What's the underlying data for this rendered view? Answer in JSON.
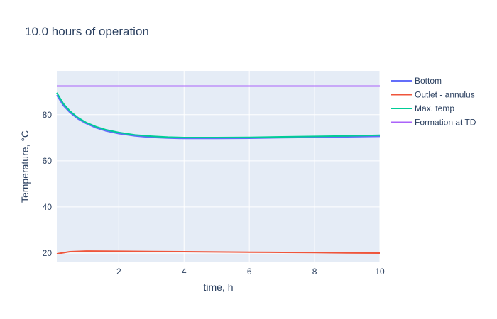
{
  "chart_data": {
    "type": "line",
    "title": "10.0 hours of operation",
    "xlabel": "time, h",
    "ylabel": "Temperature, °C",
    "xlim": [
      0.1,
      10
    ],
    "ylim": [
      16,
      99
    ],
    "xticks": [
      2,
      4,
      6,
      8,
      10
    ],
    "yticks": [
      20,
      40,
      60,
      80
    ],
    "grid": true,
    "legend_position": "right",
    "series": [
      {
        "name": "Bottom",
        "color": "#636efa",
        "x": [
          0.1,
          0.3,
          0.5,
          0.75,
          1.0,
          1.3,
          1.6,
          2.0,
          2.5,
          3.0,
          3.5,
          4.0,
          5.0,
          6.0,
          7.0,
          8.0,
          9.0,
          10.0
        ],
        "y": [
          88.5,
          84.0,
          81.0,
          78.2,
          76.2,
          74.3,
          73.0,
          71.8,
          70.8,
          70.2,
          69.9,
          69.7,
          69.7,
          69.8,
          70.0,
          70.2,
          70.4,
          70.6
        ]
      },
      {
        "name": "Outlet - annulus",
        "color": "#ef553b",
        "x": [
          0.1,
          0.5,
          1.0,
          2.0,
          3.0,
          4.0,
          5.0,
          6.0,
          7.0,
          8.0,
          9.0,
          10.0
        ],
        "y": [
          19.7,
          20.6,
          20.9,
          20.8,
          20.7,
          20.6,
          20.5,
          20.4,
          20.3,
          20.2,
          20.1,
          20.0
        ]
      },
      {
        "name": "Max. temp",
        "color": "#00cc96",
        "x": [
          0.1,
          0.3,
          0.5,
          0.75,
          1.0,
          1.3,
          1.6,
          2.0,
          2.5,
          3.0,
          3.5,
          4.0,
          5.0,
          6.0,
          7.0,
          8.0,
          9.0,
          10.0
        ],
        "y": [
          89.5,
          84.8,
          81.6,
          78.7,
          76.6,
          74.8,
          73.5,
          72.3,
          71.2,
          70.7,
          70.3,
          70.1,
          70.1,
          70.2,
          70.4,
          70.6,
          70.8,
          71.1
        ]
      },
      {
        "name": "Formation at TD",
        "color": "#ab63fa",
        "x": [
          0.1,
          10.0
        ],
        "y": [
          92.4,
          92.4
        ]
      }
    ]
  }
}
